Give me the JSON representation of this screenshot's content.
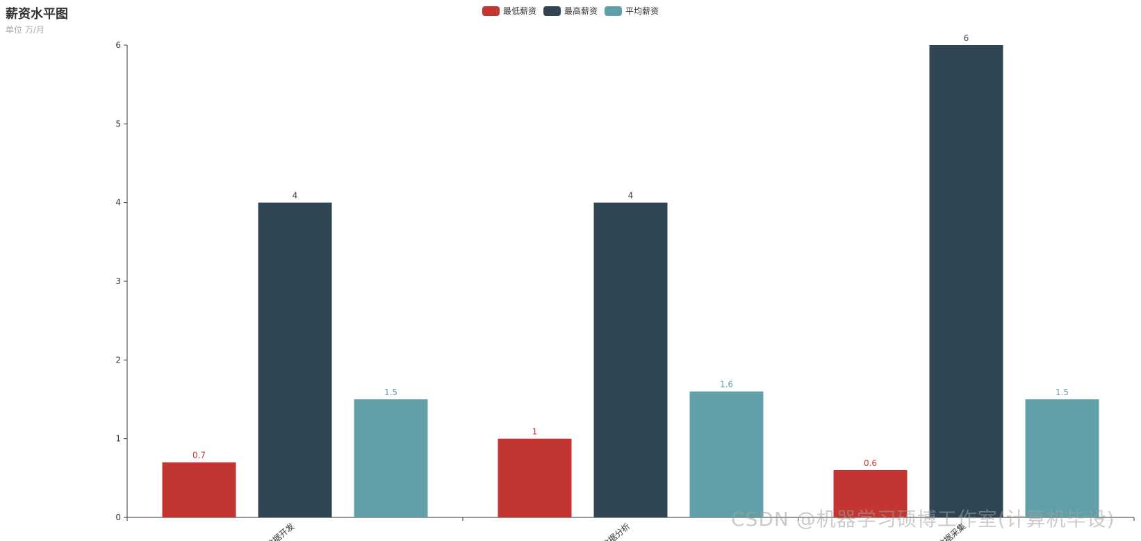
{
  "chart_data": {
    "type": "bar",
    "title": "薪资水平图",
    "subtitle": "单位  万/月",
    "categories": [
      "数据开发",
      "数据分析",
      "数据采集"
    ],
    "series": [
      {
        "name": "最低薪资",
        "color": "#c23531",
        "values": [
          0.7,
          1,
          0.6
        ]
      },
      {
        "name": "最高薪资",
        "color": "#2f4554",
        "values": [
          4,
          4,
          6
        ]
      },
      {
        "name": "平均薪资",
        "color": "#61a0a8",
        "values": [
          1.5,
          1.6,
          1.5
        ]
      }
    ],
    "ylim": [
      0,
      6
    ],
    "yticks": [
      0,
      1,
      2,
      3,
      4,
      5,
      6
    ],
    "legend_position": "top-center",
    "grid": false
  },
  "watermark": "CSDN @机器学习硕博工作室(计算机毕设)"
}
